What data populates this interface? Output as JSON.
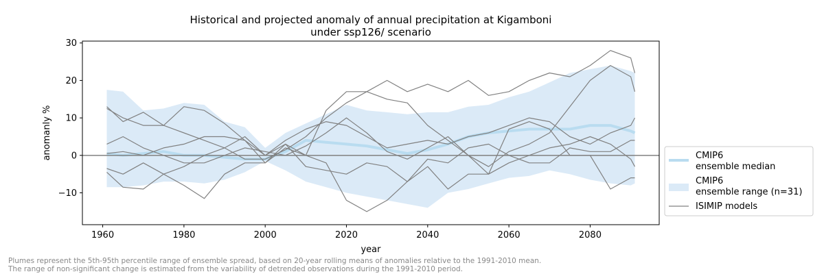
{
  "chart_data": {
    "type": "line",
    "title_line1": "Historical and projected anomaly of annual precipitation at Kigamboni",
    "title_line2": "under ssp126/ scenario",
    "xlabel": "year",
    "ylabel": "anomanly %",
    "xlim": [
      1955,
      2097
    ],
    "ylim": [
      -18.5,
      30.5
    ],
    "xticks": [
      1960,
      1980,
      2000,
      2020,
      2040,
      2060,
      2080
    ],
    "yticks": [
      -10,
      0,
      10,
      20,
      30
    ],
    "ytick_labels": [
      "−10",
      "0",
      "10",
      "20",
      "30"
    ],
    "zero_line": 0,
    "colors": {
      "median": "#b9dcf0",
      "range": "#dbeaf7",
      "isimip": "#808080",
      "zero": "#808080",
      "frame": "#000000"
    },
    "legend": {
      "position": "right",
      "entries": [
        {
          "key": "median",
          "lines": [
            "CMIP6",
            "ensemble median"
          ]
        },
        {
          "key": "range",
          "lines": [
            "CMIP6",
            "ensemble range (n=31)"
          ]
        },
        {
          "key": "isimip",
          "lines": [
            "ISIMIP models"
          ]
        }
      ]
    },
    "x": [
      1961,
      1965,
      1970,
      1975,
      1980,
      1985,
      1990,
      1995,
      2000,
      2005,
      2010,
      2015,
      2020,
      2025,
      2030,
      2035,
      2040,
      2045,
      2050,
      2055,
      2060,
      2065,
      2070,
      2075,
      2080,
      2085,
      2090,
      2091
    ],
    "median": [
      0.5,
      0.0,
      0.5,
      1.0,
      0.0,
      0.0,
      -0.5,
      -1.0,
      -1.0,
      1.0,
      4.0,
      3.5,
      3.0,
      2.5,
      1.5,
      0.5,
      1.5,
      3.0,
      5.0,
      6.0,
      6.5,
      7.0,
      7.0,
      7.0,
      8.0,
      8.0,
      6.5,
      6.0
    ],
    "range_upper": [
      17.5,
      17.0,
      12.0,
      12.5,
      14.0,
      13.5,
      9.0,
      7.5,
      2.0,
      6.0,
      8.5,
      11.0,
      13.5,
      12.0,
      11.5,
      11.0,
      11.5,
      11.5,
      13.0,
      13.5,
      15.5,
      17.0,
      19.5,
      22.0,
      23.0,
      24.0,
      22.5,
      22.0
    ],
    "range_lower": [
      -8.5,
      -8.5,
      -8.0,
      -7.0,
      -7.0,
      -7.5,
      -6.5,
      -4.5,
      -1.5,
      -4.0,
      -7.0,
      -8.5,
      -10.0,
      -11.0,
      -12.0,
      -13.0,
      -14.0,
      -10.0,
      -9.0,
      -7.5,
      -6.0,
      -5.5,
      -4.0,
      -5.0,
      -6.5,
      -7.5,
      -8.0,
      -7.5
    ],
    "isimip_series": [
      {
        "name": "ISIMIP model 1",
        "values": [
          13.0,
          9.0,
          11.5,
          8.0,
          13.0,
          12.0,
          8.5,
          4.0,
          -2.0,
          2.0,
          0.0,
          12.0,
          17.0,
          17.0,
          20.0,
          17.0,
          19.0,
          17.0,
          20.0,
          16.0,
          17.0,
          20.0,
          22.0,
          21.0,
          24.0,
          28.0,
          26.0,
          22.0
        ]
      },
      {
        "name": "ISIMIP model 2",
        "values": [
          12.5,
          10.0,
          8.0,
          8.0,
          6.0,
          4.0,
          2.0,
          -1.0,
          -1.0,
          1.5,
          5.0,
          10.0,
          14.0,
          17.0,
          15.0,
          14.0,
          8.0,
          4.0,
          0.0,
          -3.0,
          1.0,
          3.0,
          6.0,
          13.0,
          20.0,
          24.0,
          21.0,
          17.0
        ]
      },
      {
        "name": "ISIMIP model 3",
        "values": [
          3.0,
          5.0,
          2.0,
          0.0,
          -2.0,
          -2.0,
          0.0,
          2.0,
          1.0,
          0.0,
          2.5,
          6.0,
          10.0,
          6.0,
          1.0,
          -1.0,
          2.0,
          5.0,
          0.0,
          -5.0,
          -2.0,
          0.0,
          2.0,
          3.0,
          5.0,
          3.0,
          -1.0,
          -3.0
        ]
      },
      {
        "name": "ISIMIP model 4",
        "values": [
          -3.5,
          -5.0,
          -2.0,
          -5.0,
          -3.0,
          0.0,
          2.0,
          5.0,
          0.0,
          3.0,
          -3.0,
          -4.0,
          -5.0,
          -2.0,
          -3.0,
          -7.0,
          -1.0,
          -2.0,
          2.0,
          3.0,
          0.0,
          -2.0,
          -2.0,
          2.0,
          1.0,
          1.0,
          4.0,
          4.0
        ]
      },
      {
        "name": "ISIMIP model 5",
        "values": [
          -4.5,
          -8.5,
          -9.0,
          -5.0,
          -8.0,
          -11.5,
          -5.0,
          -2.0,
          -2.0,
          3.0,
          0.0,
          -2.0,
          -12.0,
          -15.0,
          -12.0,
          -7.0,
          -3.0,
          -9.0,
          -5.0,
          -5.0,
          7.0,
          9.0,
          7.0,
          0.0,
          0.0,
          -9.0,
          -6.0,
          -6.0
        ]
      },
      {
        "name": "ISIMIP model 6",
        "values": [
          0.5,
          1.0,
          0.0,
          2.0,
          3.0,
          5.0,
          5.0,
          4.0,
          0.0,
          4.0,
          7.0,
          9.0,
          8.0,
          5.0,
          2.0,
          3.0,
          4.0,
          3.0,
          5.0,
          6.0,
          8.0,
          10.0,
          9.0,
          5.0,
          3.0,
          6.0,
          8.0,
          10.0
        ]
      }
    ]
  },
  "footnote": {
    "line1": "Plumes represent the 5th-95th percentile range of ensemble spread, based on 20-year rolling means of anomalies relative to the 1991-2010 mean.",
    "line2": "The range of non-significant change is estimated from the variability of detrended observations during the 1991-2010 period."
  }
}
